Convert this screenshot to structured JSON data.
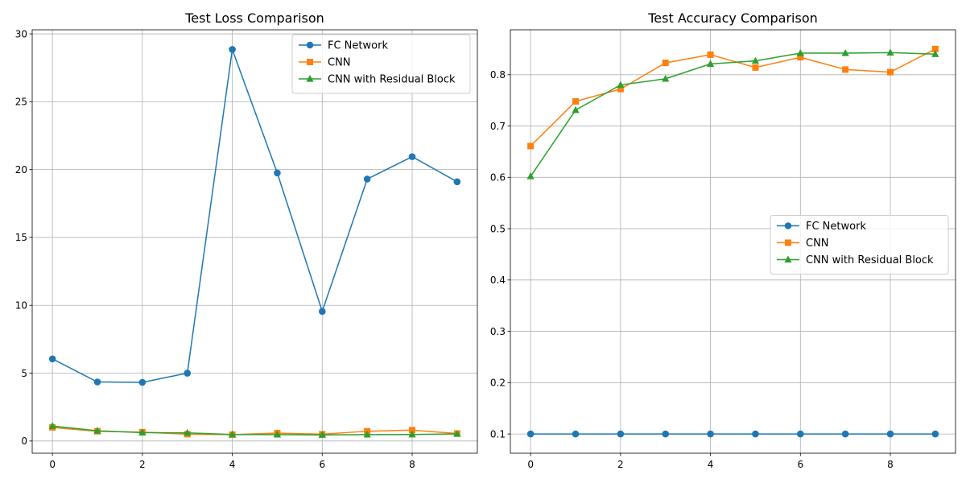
{
  "chart_data": [
    {
      "type": "line",
      "title": "Test Loss Comparison",
      "xlabel": "",
      "ylabel": "",
      "x": [
        0,
        1,
        2,
        3,
        4,
        5,
        6,
        7,
        8,
        9
      ],
      "xlim": [
        -0.45,
        9.45
      ],
      "ylim": [
        -0.9,
        30.3
      ],
      "xticks": [
        0,
        2,
        4,
        6,
        8
      ],
      "xtick_labels": [
        "0",
        "2",
        "4",
        "6",
        "8"
      ],
      "yticks": [
        0,
        5,
        10,
        15,
        20,
        25,
        30
      ],
      "ytick_labels": [
        "0",
        "5",
        "10",
        "15",
        "20",
        "25",
        "30"
      ],
      "grid": true,
      "legend_position": "upper right",
      "series": [
        {
          "name": "FC Network",
          "color": "#1f77b4",
          "marker": "circle",
          "values": [
            6.05,
            4.35,
            4.32,
            5.0,
            28.85,
            19.75,
            9.55,
            19.3,
            20.95,
            19.1
          ]
        },
        {
          "name": "CNN",
          "color": "#ff7f0e",
          "marker": "square",
          "values": [
            1.0,
            0.72,
            0.65,
            0.5,
            0.47,
            0.58,
            0.5,
            0.72,
            0.8,
            0.55
          ]
        },
        {
          "name": "CNN with Residual Block",
          "color": "#2ca02c",
          "marker": "triangle",
          "values": [
            1.1,
            0.75,
            0.62,
            0.6,
            0.48,
            0.47,
            0.45,
            0.47,
            0.48,
            0.52
          ]
        }
      ]
    },
    {
      "type": "line",
      "title": "Test Accuracy Comparison",
      "xlabel": "",
      "ylabel": "",
      "x": [
        0,
        1,
        2,
        3,
        4,
        5,
        6,
        7,
        8,
        9
      ],
      "xlim": [
        -0.45,
        9.45
      ],
      "ylim": [
        0.0625,
        0.8875
      ],
      "xticks": [
        0,
        2,
        4,
        6,
        8
      ],
      "xtick_labels": [
        "0",
        "2",
        "4",
        "6",
        "8"
      ],
      "yticks": [
        0.1,
        0.2,
        0.3,
        0.4,
        0.5,
        0.6,
        0.7,
        0.8
      ],
      "ytick_labels": [
        "0.1",
        "0.2",
        "0.3",
        "0.4",
        "0.5",
        "0.6",
        "0.7",
        "0.8"
      ],
      "grid": true,
      "legend_position": "center right",
      "series": [
        {
          "name": "FC Network",
          "color": "#1f77b4",
          "marker": "circle",
          "values": [
            0.1,
            0.1,
            0.1,
            0.1,
            0.1,
            0.1,
            0.1,
            0.1,
            0.1,
            0.1
          ]
        },
        {
          "name": "CNN",
          "color": "#ff7f0e",
          "marker": "square",
          "values": [
            0.661,
            0.748,
            0.772,
            0.823,
            0.839,
            0.814,
            0.834,
            0.81,
            0.805,
            0.85
          ]
        },
        {
          "name": "CNN with Residual Block",
          "color": "#2ca02c",
          "marker": "triangle",
          "values": [
            0.602,
            0.731,
            0.78,
            0.792,
            0.821,
            0.827,
            0.842,
            0.842,
            0.843,
            0.84
          ]
        }
      ]
    }
  ]
}
